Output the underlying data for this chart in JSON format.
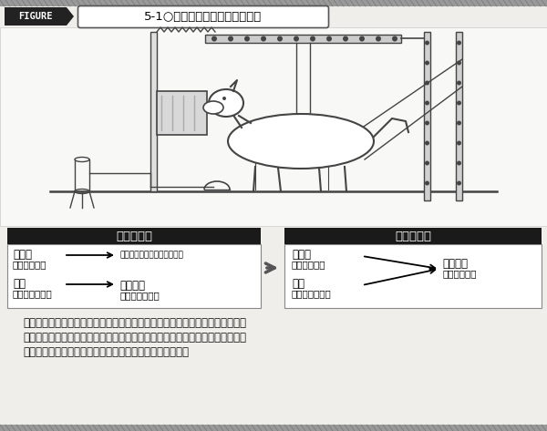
{
  "title_figure": "FIGURE",
  "title_main": "5-1○古典的条件づけの形成過程",
  "bg_color": "#f0eeea",
  "left_box_title": "条件づけ前",
  "right_box_title": "条件づけ後",
  "caption_lines": [
    "　条件づけ前のイヌにメトロノームの音を聞かせても，定位反応は生じるが番",
    "液は分泌されない。ところが条件づけ後には，メトロノームの音（条件刺激）",
    "を聞いだけで番液が分泌されるようになる（条件反応）。"
  ],
  "box_bg": "#1a1a1a",
  "text_color": "#111111",
  "line_color": "#444444",
  "strip_color": "#999999"
}
